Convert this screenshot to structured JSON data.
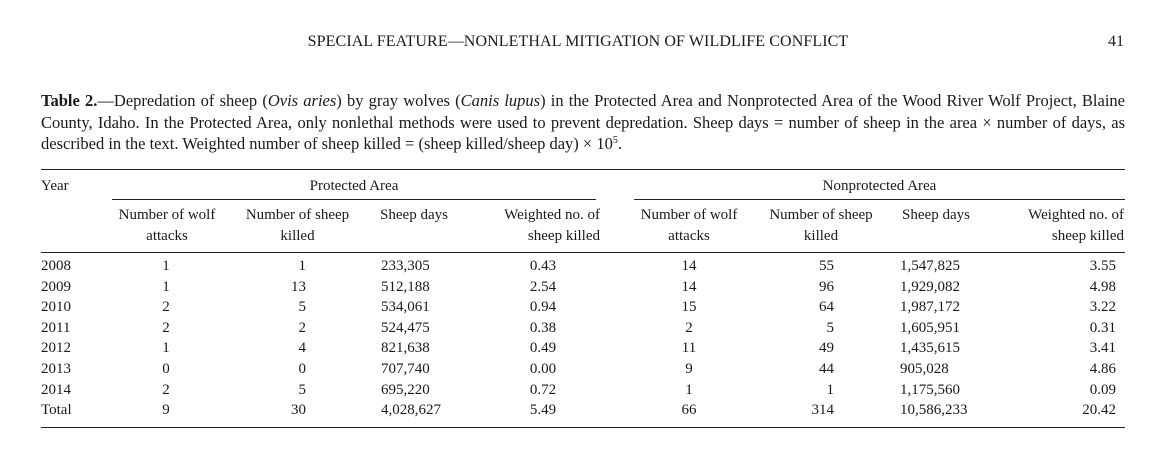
{
  "header": {
    "running_title": "SPECIAL FEATURE—NONLETHAL MITIGATION OF WILDLIFE CONFLICT",
    "page_number": "41"
  },
  "caption": {
    "label": "Table 2.",
    "dash": "—",
    "part1": "Depredation of sheep (",
    "sheep_species": "Ovis aries",
    "part2": ") by gray wolves (",
    "wolf_species": "Canis lupus",
    "part3": ") in the Protected Area and Nonprotected Area of the Wood River Wolf Project, Blaine County, Idaho. In the Protected Area, only nonlethal methods were used to prevent depredation. Sheep days = number of sheep in the area × number of days, as described in the text. Weighted number of sheep killed = (sheep killed/sheep day) × 10",
    "exponent": "5",
    "end": "."
  },
  "table": {
    "year_header": "Year",
    "group_protected": "Protected Area",
    "group_nonprotected": "Nonprotected Area",
    "columns": [
      "Number of wolf attacks",
      "Number of sheep killed",
      "Sheep days",
      "Weighted no. of sheep killed",
      "Number of wolf attacks",
      "Number of sheep killed",
      "Sheep days",
      "Weighted no. of sheep killed"
    ],
    "rows": [
      {
        "year": "2008",
        "cells": [
          "1",
          "1",
          "233,305",
          "0.43",
          "14",
          "55",
          "1,547,825",
          "3.55"
        ]
      },
      {
        "year": "2009",
        "cells": [
          "1",
          "13",
          "512,188",
          "2.54",
          "14",
          "96",
          "1,929,082",
          "4.98"
        ]
      },
      {
        "year": "2010",
        "cells": [
          "2",
          "5",
          "534,061",
          "0.94",
          "15",
          "64",
          "1,987,172",
          "3.22"
        ]
      },
      {
        "year": "2011",
        "cells": [
          "2",
          "2",
          "524,475",
          "0.38",
          "2",
          "5",
          "1,605,951",
          "0.31"
        ]
      },
      {
        "year": "2012",
        "cells": [
          "1",
          "4",
          "821,638",
          "0.49",
          "11",
          "49",
          "1,435,615",
          "3.41"
        ]
      },
      {
        "year": "2013",
        "cells": [
          "0",
          "0",
          "707,740",
          "0.00",
          "9",
          "44",
          "905,028",
          "4.86"
        ]
      },
      {
        "year": "2014",
        "cells": [
          "2",
          "5",
          "695,220",
          "0.72",
          "1",
          "1",
          "1,175,560",
          "0.09"
        ]
      },
      {
        "year": "Total",
        "cells": [
          "9",
          "30",
          "4,028,627",
          "5.49",
          "66",
          "314",
          "10,586,233",
          "20.42"
        ]
      }
    ]
  }
}
